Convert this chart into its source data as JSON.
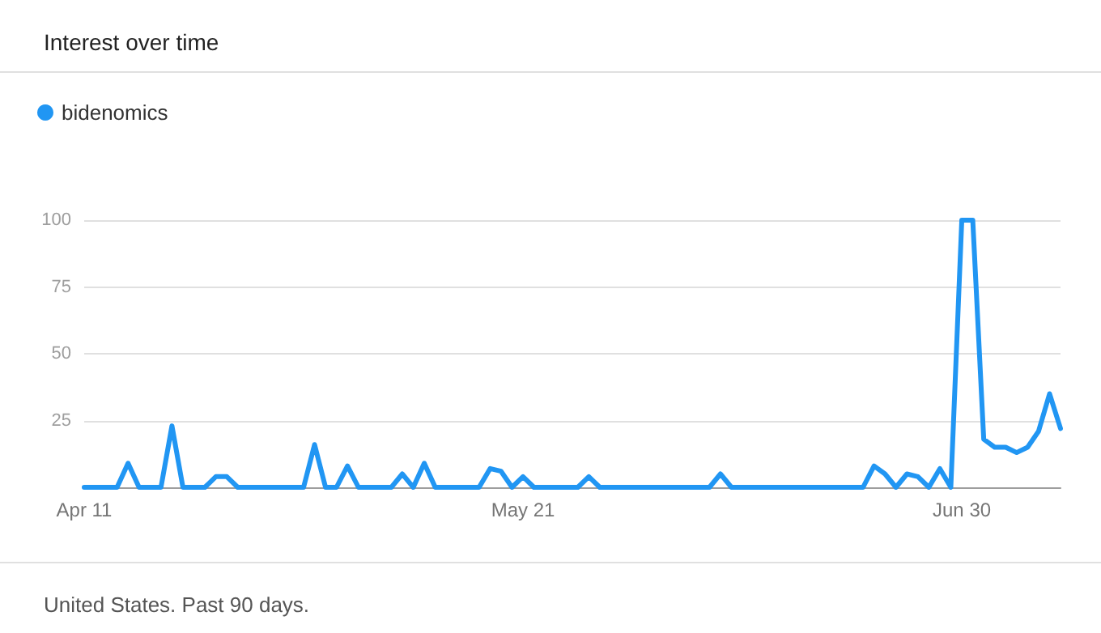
{
  "chart_data": {
    "type": "line",
    "title": "Interest over time",
    "annotations": [
      "United States. Past 90 days."
    ],
    "categories": [
      "Apr 11",
      null,
      null,
      null,
      null,
      null,
      null,
      null,
      null,
      null,
      null,
      null,
      null,
      null,
      null,
      null,
      null,
      null,
      null,
      null,
      null,
      null,
      null,
      null,
      null,
      null,
      null,
      null,
      null,
      null,
      null,
      null,
      null,
      null,
      null,
      null,
      null,
      null,
      null,
      null,
      "May 21",
      null,
      null,
      null,
      null,
      null,
      null,
      null,
      null,
      null,
      null,
      null,
      null,
      null,
      null,
      null,
      null,
      null,
      null,
      null,
      null,
      null,
      null,
      null,
      null,
      null,
      null,
      null,
      null,
      null,
      null,
      null,
      null,
      null,
      null,
      null,
      null,
      null,
      null,
      null,
      "Jun 30",
      null,
      null,
      null,
      null,
      null,
      null,
      null,
      null,
      null
    ],
    "series": [
      {
        "name": "bidenomics",
        "color": "#2196f3",
        "values": [
          0,
          0,
          0,
          0,
          9,
          0,
          0,
          0,
          23,
          0,
          0,
          0,
          4,
          4,
          0,
          0,
          0,
          0,
          0,
          0,
          0,
          16,
          0,
          0,
          8,
          0,
          0,
          0,
          0,
          5,
          0,
          9,
          0,
          0,
          0,
          0,
          0,
          7,
          6,
          0,
          4,
          0,
          0,
          0,
          0,
          0,
          4,
          0,
          0,
          0,
          0,
          0,
          0,
          0,
          0,
          0,
          0,
          0,
          5,
          0,
          0,
          0,
          0,
          0,
          0,
          0,
          0,
          0,
          0,
          0,
          0,
          0,
          8,
          5,
          0,
          5,
          4,
          0,
          7,
          0,
          100,
          100,
          18,
          15,
          15,
          13,
          15,
          21,
          35,
          22
        ]
      }
    ],
    "ylim": [
      0,
      100
    ],
    "yticks": [
      25,
      50,
      75,
      100
    ],
    "grid": "y",
    "legend": "top left",
    "marker": "none",
    "line_style": "solid"
  }
}
